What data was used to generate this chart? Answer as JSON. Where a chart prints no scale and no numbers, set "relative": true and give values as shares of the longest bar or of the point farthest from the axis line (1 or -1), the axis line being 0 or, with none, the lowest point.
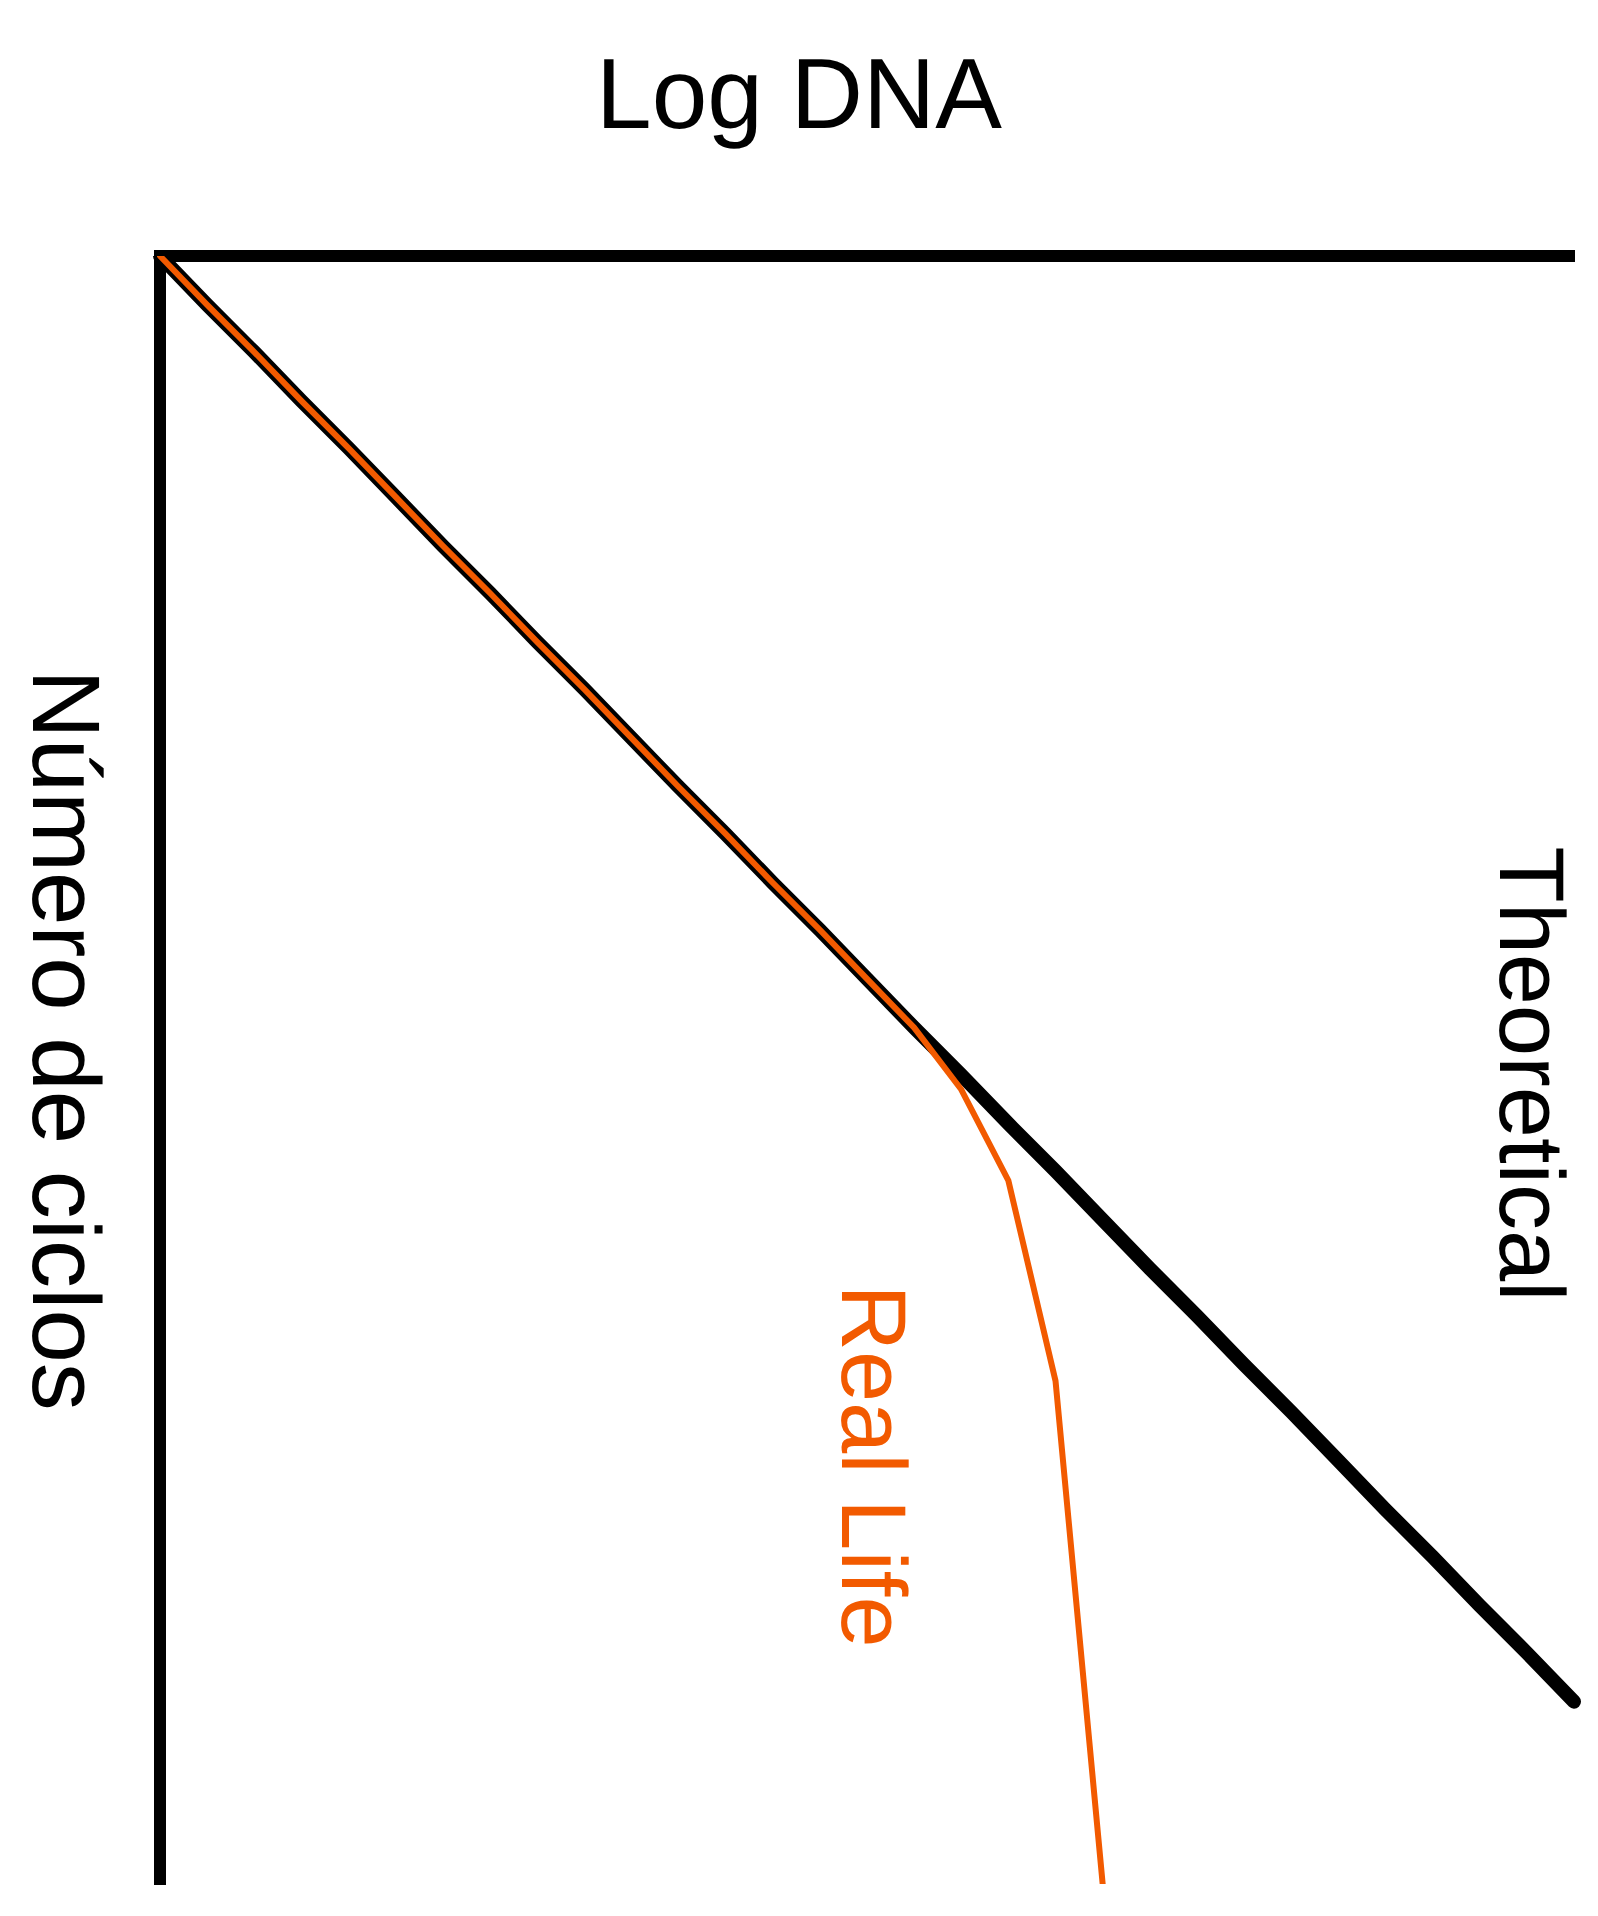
{
  "chart_data": {
    "type": "line",
    "xlabel": "Log DNA",
    "ylabel": "Número de ciclos",
    "relative": true,
    "marker": "none",
    "categories": [
      null,
      null,
      null,
      null,
      null,
      null,
      null,
      null,
      null,
      null,
      null,
      null,
      null,
      null,
      null,
      null,
      null,
      null,
      null,
      null,
      null,
      null,
      null,
      null,
      null,
      null,
      null,
      null,
      null,
      null,
      null
    ],
    "series": [
      {
        "name": "Theoretical",
        "color": "#000000",
        "values": [
          0,
          -0.03,
          -0.059,
          -0.089,
          -0.118,
          -0.148,
          -0.178,
          -0.207,
          -0.237,
          -0.266,
          -0.296,
          -0.326,
          -0.355,
          -0.385,
          -0.414,
          -0.444,
          -0.474,
          -0.503,
          -0.533,
          -0.562,
          -0.592,
          -0.622,
          -0.651,
          -0.681,
          -0.71,
          -0.74,
          -0.77,
          -0.799,
          -0.829,
          -0.858,
          -0.888
        ]
      },
      {
        "name": "Real Life",
        "color": "#f25a00",
        "values": [
          0,
          -0.03,
          -0.059,
          -0.089,
          -0.118,
          -0.148,
          -0.178,
          -0.207,
          -0.237,
          -0.266,
          -0.296,
          -0.326,
          -0.355,
          -0.385,
          -0.414,
          -0.444,
          -0.474,
          -0.512,
          -0.568,
          -0.691,
          -1,
          null,
          null,
          null,
          null,
          null,
          null,
          null,
          null,
          null,
          null
        ]
      }
    ]
  }
}
